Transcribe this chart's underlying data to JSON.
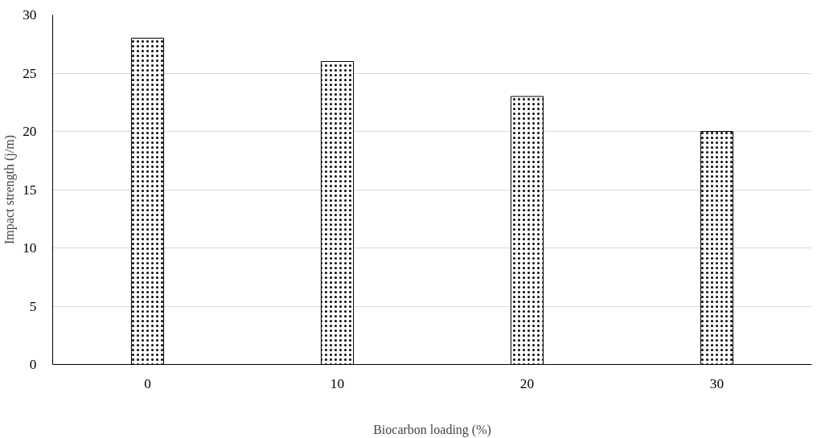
{
  "chart_data": {
    "type": "bar",
    "xlabel": "Biocarbon loading (%)",
    "ylabel": "Impact strength (j/m)",
    "categories": [
      "0",
      "10",
      "20",
      "30"
    ],
    "values": [
      28,
      26,
      23,
      20
    ],
    "color": "#ffffff",
    "ylim": [
      0,
      30
    ],
    "yticks": [
      0,
      5,
      10,
      15,
      20,
      25,
      30
    ],
    "grid": "y"
  }
}
